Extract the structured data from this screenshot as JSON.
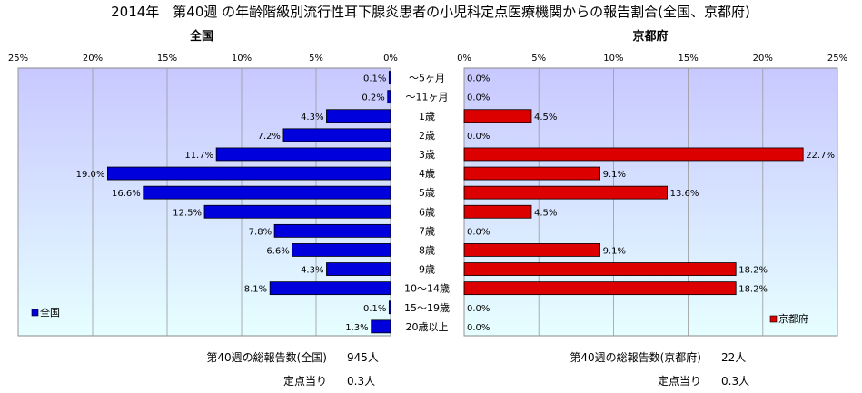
{
  "title": "2014年　第40週 の年齢階級別流行性耳下腺炎患者の小児科定点医療機関からの報告割合(全国、京都府)",
  "colors": {
    "zenkoku_bar": "#0000dd",
    "kyoto_bar": "#dd0000",
    "plot_bg_top": "#c8c8ff",
    "plot_bg_bottom": "#e6ffff",
    "grid": "#9a9a9a"
  },
  "chart_data": [
    {
      "type": "bar",
      "orientation": "horizontal",
      "direction": "right-to-left",
      "title": "全国",
      "legend": "全国",
      "legend_position": "bottom-left",
      "xlim": [
        0,
        25
      ],
      "ticks": [
        "25%",
        "20%",
        "15%",
        "10%",
        "5%",
        "0%"
      ],
      "categories": [
        "～5ヶ月",
        "～11ヶ月",
        "1歳",
        "2歳",
        "3歳",
        "4歳",
        "5歳",
        "6歳",
        "7歳",
        "8歳",
        "9歳",
        "10～14歳",
        "15～19歳",
        "20歳以上"
      ],
      "values": [
        0.1,
        0.2,
        4.3,
        7.2,
        11.7,
        19.0,
        16.6,
        12.5,
        7.8,
        6.6,
        4.3,
        8.1,
        0.1,
        1.3
      ],
      "labels": [
        "0.1%",
        "0.2%",
        "4.3%",
        "7.2%",
        "11.7%",
        "19.0%",
        "16.6%",
        "12.5%",
        "7.8%",
        "6.6%",
        "4.3%",
        "8.1%",
        "0.1%",
        "1.3%"
      ]
    },
    {
      "type": "bar",
      "orientation": "horizontal",
      "direction": "left-to-right",
      "title": "京都府",
      "legend": "京都府",
      "legend_position": "bottom-right",
      "xlim": [
        0,
        25
      ],
      "ticks": [
        "0%",
        "5%",
        "10%",
        "15%",
        "20%",
        "25%"
      ],
      "categories": [
        "～5ヶ月",
        "～11ヶ月",
        "1歳",
        "2歳",
        "3歳",
        "4歳",
        "5歳",
        "6歳",
        "7歳",
        "8歳",
        "9歳",
        "10～14歳",
        "15～19歳",
        "20歳以上"
      ],
      "values": [
        0.0,
        0.0,
        4.5,
        0.0,
        22.7,
        9.1,
        13.6,
        4.5,
        0.0,
        9.1,
        18.2,
        18.2,
        0.0,
        0.0
      ],
      "labels": [
        "0.0%",
        "0.0%",
        "4.5%",
        "0.0%",
        "22.7%",
        "9.1%",
        "13.6%",
        "4.5%",
        "0.0%",
        "9.1%",
        "18.2%",
        "18.2%",
        "0.0%",
        "0.0%"
      ]
    }
  ],
  "footer": {
    "zenkoku_total_label": "第40週の総報告数(全国)",
    "zenkoku_total_value": "945人",
    "zenkoku_per_label": "定点当り",
    "zenkoku_per_value": "0.3人",
    "kyoto_total_label": "第40週の総報告数(京都府)",
    "kyoto_total_value": "22人",
    "kyoto_per_label": "定点当り",
    "kyoto_per_value": "0.3人"
  }
}
